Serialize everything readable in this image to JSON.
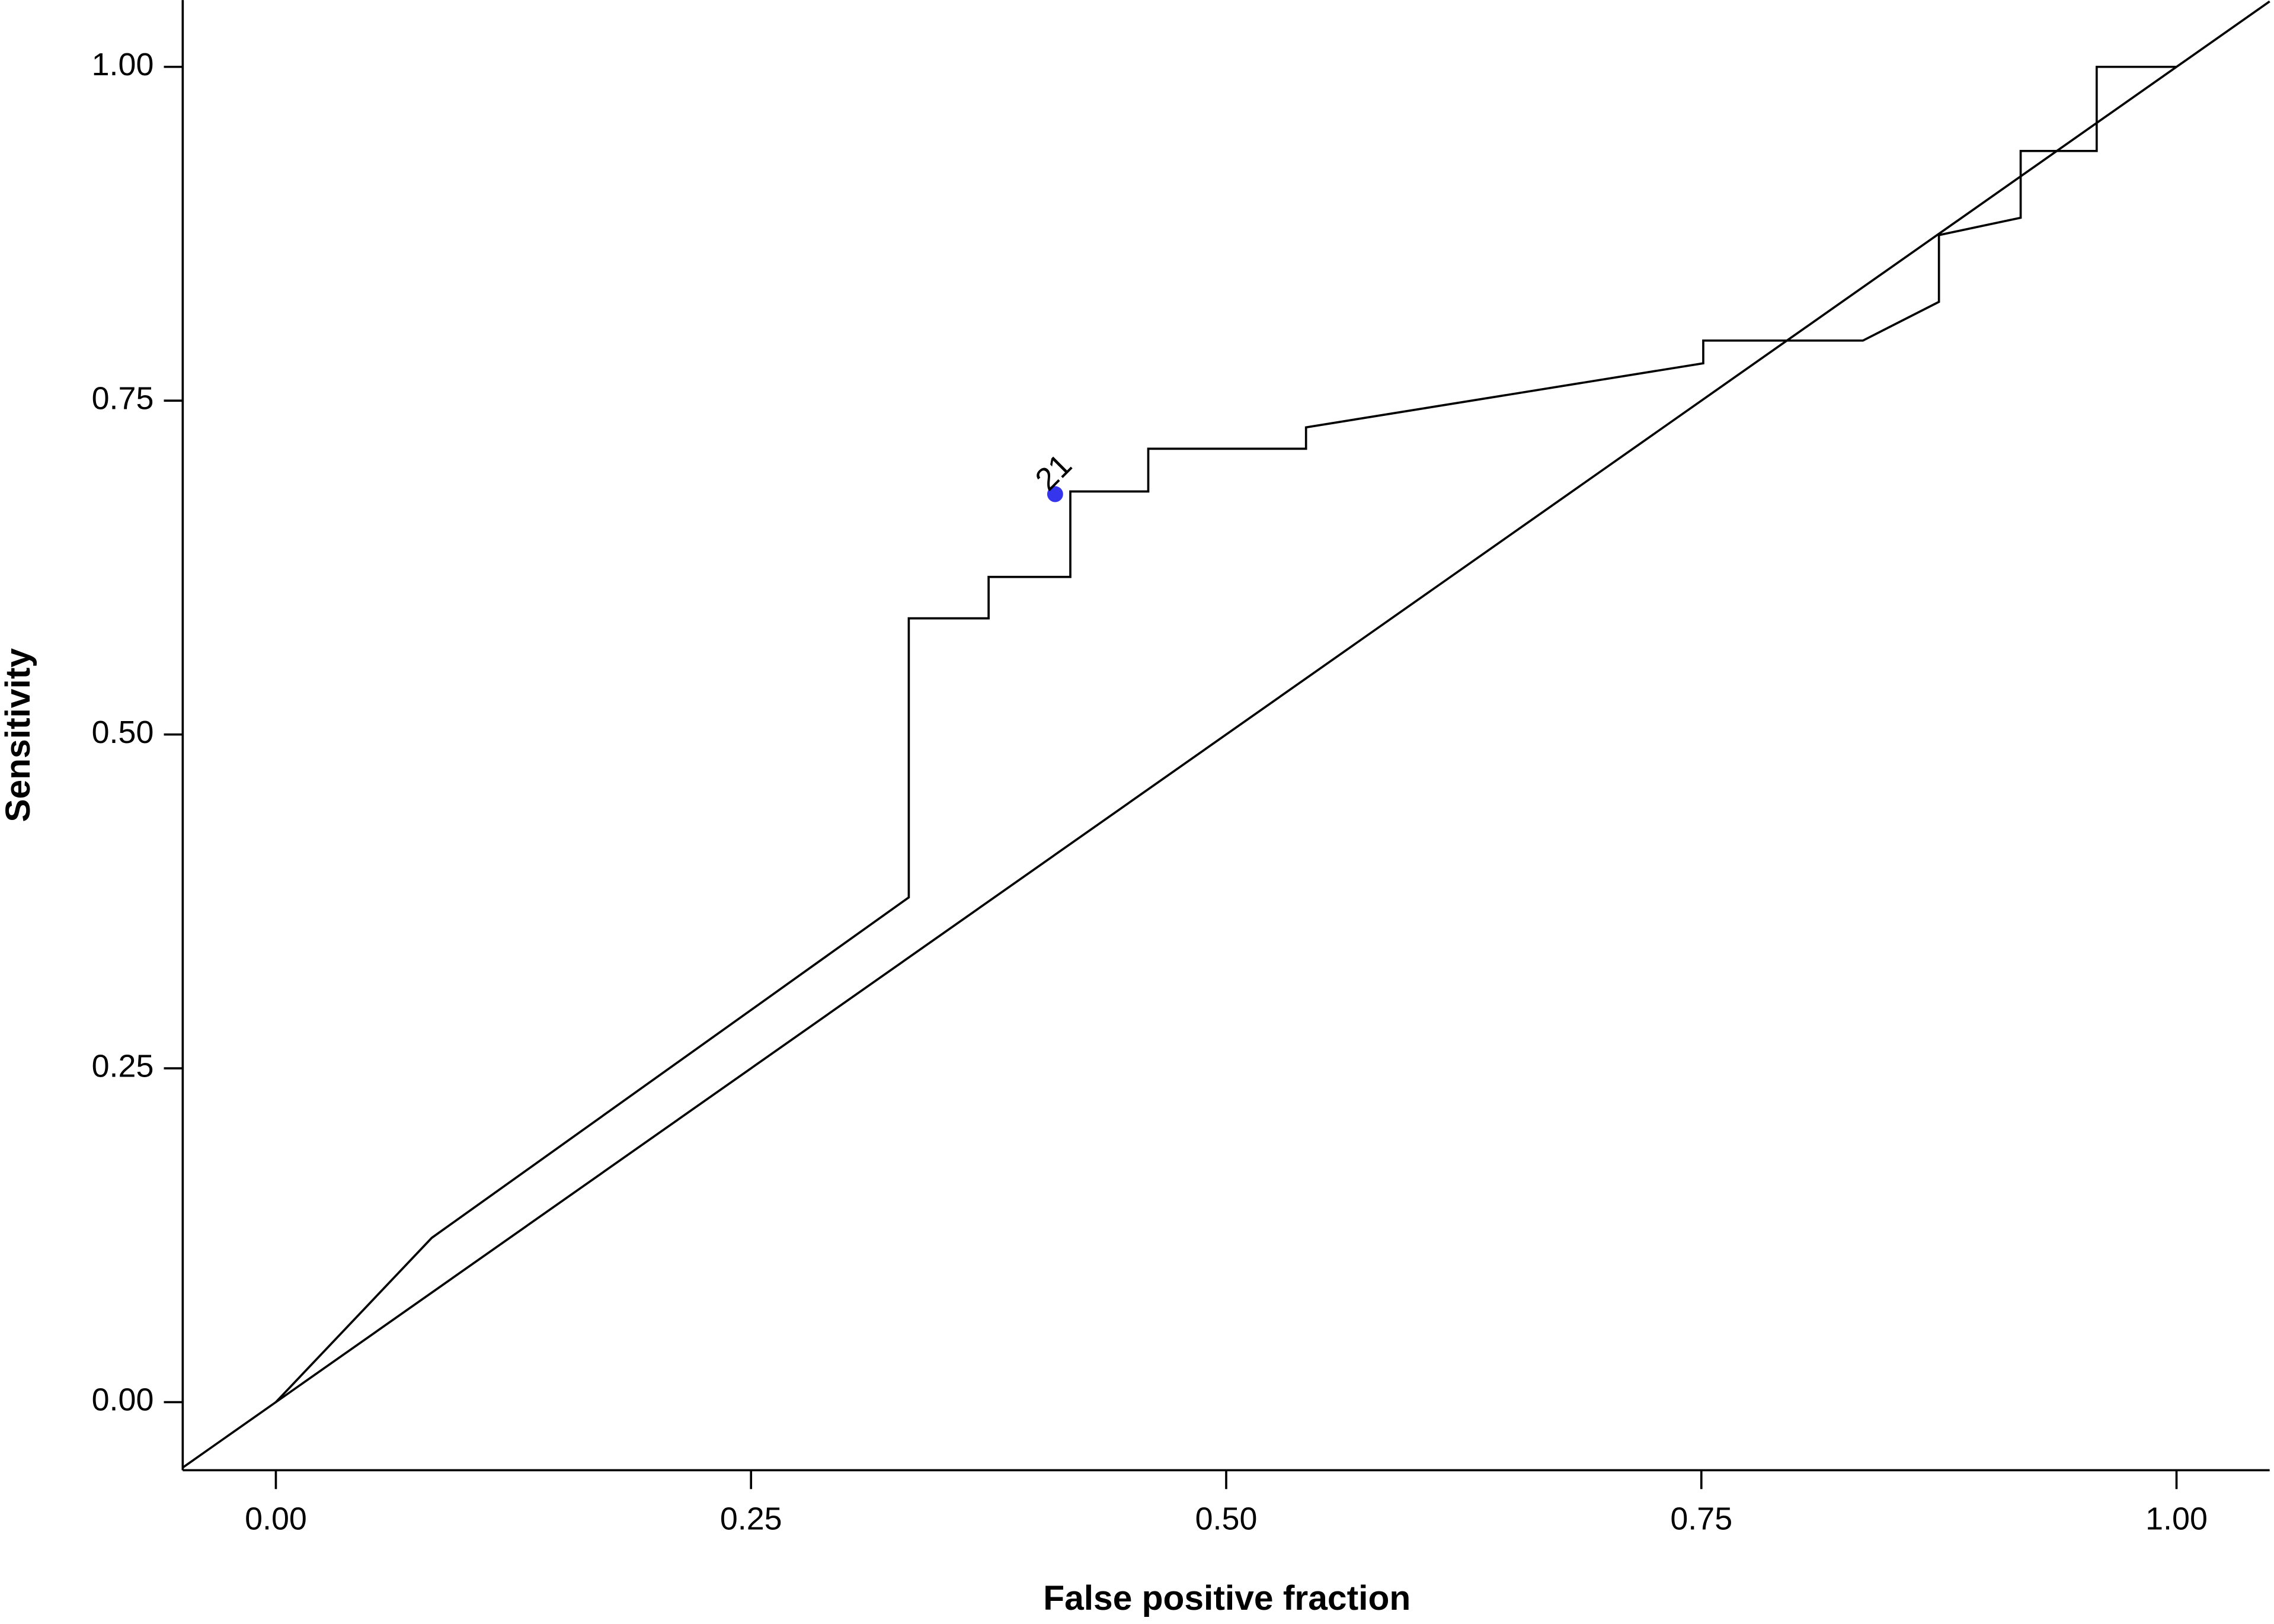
{
  "chart_data": {
    "type": "line",
    "x_label": "False positive fraction",
    "y_label": "Sensitivity",
    "x": [
      0,
      0.082,
      0.333,
      0.333,
      0.375,
      0.375,
      0.418,
      0.418,
      0.459,
      0.459,
      0.542,
      0.542,
      0.751,
      0.751,
      0.835,
      0.875,
      0.875,
      0.918,
      0.918,
      0.958,
      0.958,
      1.0
    ],
    "values": [
      0,
      0.123,
      0.378,
      0.587,
      0.587,
      0.618,
      0.618,
      0.682,
      0.682,
      0.714,
      0.714,
      0.73,
      0.778,
      0.795,
      0.795,
      0.824,
      0.874,
      0.887,
      0.937,
      0.937,
      1.0,
      1.0
    ],
    "color": "#000000",
    "diagonal": true,
    "highlight": {
      "x": 0.41,
      "y": 0.68,
      "label": "21",
      "color": "#3535ee"
    },
    "xlim": [
      -0.049,
      1.049
    ],
    "ylim": [
      -0.051,
      1.05
    ],
    "xticks": [
      {
        "value": 0,
        "label": "0.00"
      },
      {
        "value": 0.25,
        "label": "0.25"
      },
      {
        "value": 0.5,
        "label": "0.50"
      },
      {
        "value": 0.75,
        "label": "0.75"
      },
      {
        "value": 1,
        "label": "1.00"
      }
    ],
    "yticks": [
      {
        "value": 0,
        "label": "0.00"
      },
      {
        "value": 0.25,
        "label": "0.25"
      },
      {
        "value": 0.5,
        "label": "0.50"
      },
      {
        "value": 0.75,
        "label": "0.75"
      },
      {
        "value": 1,
        "label": "1.00"
      }
    ]
  }
}
